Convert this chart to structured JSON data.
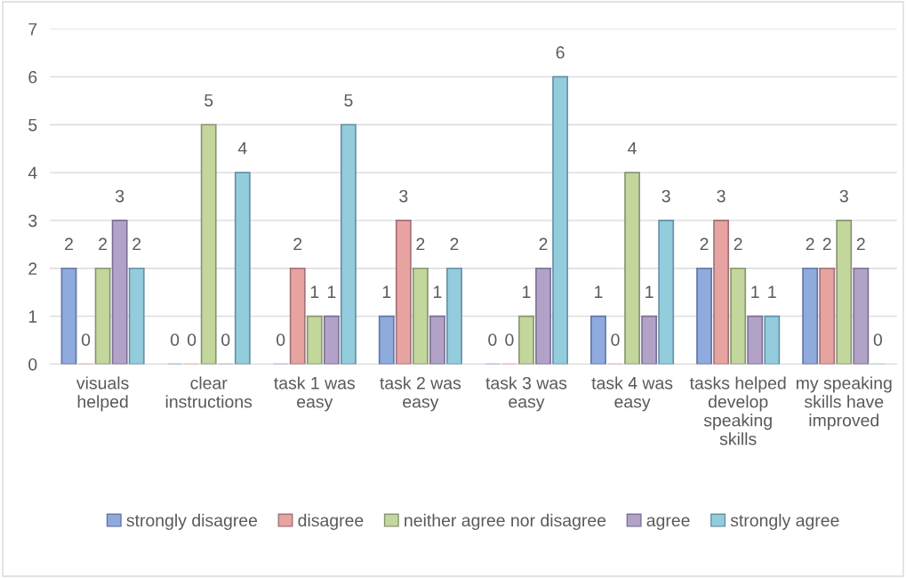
{
  "chart_data": {
    "type": "bar",
    "categories": [
      "visuals helped",
      "clear instructions",
      "task 1 was easy",
      "task 2 was easy",
      "task 3 was easy",
      "task 4 was easy",
      "tasks helped develop speaking skills",
      "my speaking skills have improved"
    ],
    "series": [
      {
        "name": "strongly disagree",
        "color": "#8faadc",
        "values": [
          2,
          0,
          0,
          1,
          0,
          1,
          2,
          2
        ]
      },
      {
        "name": "disagree",
        "color": "#e6a3a0",
        "values": [
          0,
          0,
          2,
          3,
          0,
          0,
          3,
          2
        ]
      },
      {
        "name": "neither agree nor disagree",
        "color": "#c3d69b",
        "values": [
          2,
          5,
          1,
          2,
          1,
          4,
          2,
          3
        ]
      },
      {
        "name": "agree",
        "color": "#b3a2c7",
        "values": [
          3,
          0,
          1,
          1,
          2,
          1,
          1,
          2
        ]
      },
      {
        "name": "strongly agree",
        "color": "#93cddd",
        "values": [
          2,
          4,
          5,
          2,
          6,
          3,
          1,
          0
        ]
      }
    ],
    "ylim": [
      0,
      7
    ],
    "yticks": [
      0,
      1,
      2,
      3,
      4,
      5,
      6,
      7
    ],
    "grid": "y",
    "legend": "bottom",
    "data_labels": true
  }
}
